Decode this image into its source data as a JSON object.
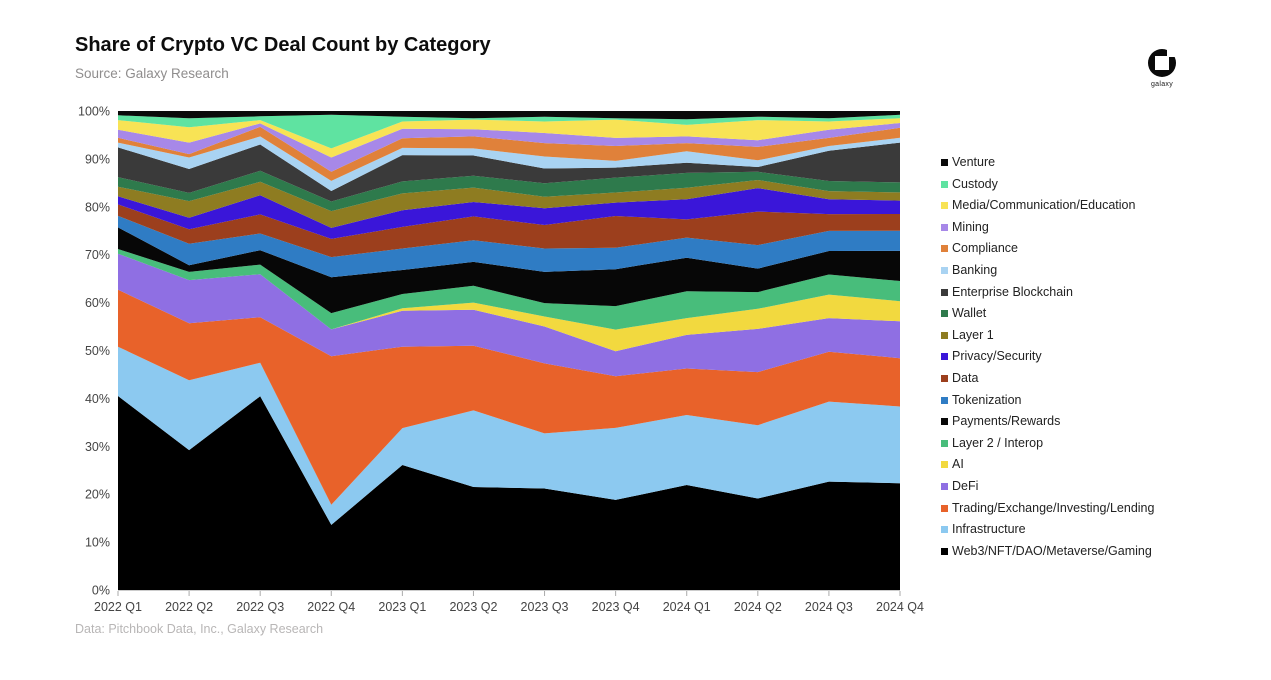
{
  "header": {
    "title": "Share of Crypto VC Deal Count by Category",
    "subtitle": "Source: Galaxy Research"
  },
  "logo": {
    "label": "galaxy"
  },
  "footer": {
    "text": "Data: Pitchbook Data, Inc., Galaxy Research"
  },
  "colors": {
    "background": "#ffffff",
    "title_text": "#0d0d0d",
    "subtitle_text": "#8f8d8d",
    "axis_text": "#444444",
    "footer_text": "#b8b6b6",
    "axis_line": "#cccccc",
    "tick_line": "#aaaaaa"
  },
  "chart_data": {
    "type": "area",
    "stacked": true,
    "normalized_percent": true,
    "title": "Share of Crypto VC Deal Count by Category",
    "xlabel": "",
    "ylabel": "",
    "ylim": [
      0,
      100
    ],
    "y_ticks": [
      0,
      10,
      20,
      30,
      40,
      50,
      60,
      70,
      80,
      90,
      100
    ],
    "y_tick_suffix": "%",
    "grid": false,
    "legend_position": "right",
    "legend_order": "top-of-stack-first",
    "categories": [
      "2022 Q1",
      "2022 Q2",
      "2022 Q3",
      "2022 Q4",
      "2023 Q1",
      "2023 Q2",
      "2023 Q3",
      "2023 Q4",
      "2024 Q1",
      "2024 Q2",
      "2024 Q3",
      "2024 Q4"
    ],
    "series_bottom_to_top": [
      {
        "name": "Web3/NFT/DAO/Metaverse/Gaming",
        "color": "#000000",
        "values": [
          40.5,
          29.2,
          40.5,
          13.6,
          26.1,
          21.5,
          21.2,
          18.8,
          21.9,
          19.1,
          22.6,
          22.3
        ]
      },
      {
        "name": "Infrastructure",
        "color": "#8cc9f0",
        "values": [
          10.3,
          14.6,
          7.0,
          4.2,
          7.7,
          16.0,
          11.5,
          15.0,
          14.6,
          15.3,
          16.7,
          16.0
        ]
      },
      {
        "name": "Trading/Exchange/Investing/Lending",
        "color": "#e8622a",
        "values": [
          11.9,
          11.9,
          9.5,
          31.0,
          17.0,
          13.5,
          14.6,
          10.8,
          9.7,
          11.1,
          10.4,
          10.1
        ]
      },
      {
        "name": "DeFi",
        "color": "#8f6fe3",
        "values": [
          7.5,
          9.0,
          9.0,
          5.6,
          7.5,
          7.5,
          7.7,
          5.2,
          7.0,
          9.0,
          7.0,
          7.7
        ]
      },
      {
        "name": "AI",
        "color": "#f2d93f",
        "values": [
          0,
          0,
          0,
          0,
          0.5,
          1.5,
          2.1,
          4.5,
          3.5,
          4.2,
          4.9,
          4.2
        ]
      },
      {
        "name": "Layer 2 / Interop",
        "color": "#48bd7b",
        "values": [
          1.0,
          1.7,
          2.0,
          3.4,
          3.0,
          3.5,
          2.8,
          4.9,
          5.6,
          3.5,
          4.2,
          4.2
        ]
      },
      {
        "name": "Payments/Rewards",
        "color": "#070707",
        "values": [
          4.5,
          1.4,
          3.0,
          7.5,
          5.0,
          5.0,
          6.5,
          7.7,
          7.0,
          4.9,
          4.9,
          6.3
        ]
      },
      {
        "name": "Tokenization",
        "color": "#2f7cc4",
        "values": [
          2.4,
          4.5,
          3.5,
          4.2,
          4.5,
          4.5,
          4.9,
          4.5,
          4.2,
          4.9,
          4.2,
          4.2
        ]
      },
      {
        "name": "Data",
        "color": "#9c3f1d",
        "values": [
          2.4,
          3.0,
          4.0,
          3.8,
          4.5,
          5.0,
          4.9,
          6.6,
          3.8,
          7.0,
          3.5,
          3.5
        ]
      },
      {
        "name": "Privacy/Security",
        "color": "#3a16d9",
        "values": [
          1.7,
          2.4,
          4.0,
          2.3,
          3.5,
          3.0,
          3.5,
          2.8,
          4.2,
          4.9,
          3.1,
          2.8
        ]
      },
      {
        "name": "Layer 1",
        "color": "#8e7c21",
        "values": [
          2.0,
          3.5,
          2.8,
          3.5,
          3.5,
          3.0,
          2.4,
          2.1,
          2.4,
          1.7,
          1.7,
          1.7
        ]
      },
      {
        "name": "Wallet",
        "color": "#2e7a4c",
        "values": [
          2.0,
          1.7,
          2.3,
          2.0,
          2.5,
          2.5,
          2.8,
          3.1,
          3.1,
          1.7,
          2.1,
          2.1
        ]
      },
      {
        "name": "Enterprise Blockchain",
        "color": "#3a3a3a",
        "values": [
          6.2,
          5.0,
          5.5,
          2.2,
          5.5,
          4.2,
          3.1,
          2.1,
          2.1,
          1.0,
          6.3,
          8.3
        ]
      },
      {
        "name": "Banking",
        "color": "#a9d3f2",
        "values": [
          1.0,
          2.4,
          1.7,
          2.1,
          1.5,
          1.5,
          2.5,
          1.4,
          2.4,
          1.4,
          1.0,
          1.0
        ]
      },
      {
        "name": "Compliance",
        "color": "#e0813a",
        "values": [
          1.0,
          0.7,
          2.0,
          1.9,
          2.0,
          2.5,
          2.8,
          3.1,
          1.7,
          2.8,
          1.7,
          2.1
        ]
      },
      {
        "name": "Mining",
        "color": "#a788e8",
        "values": [
          1.7,
          2.4,
          0.7,
          3.0,
          2.0,
          1.5,
          2.1,
          1.7,
          1.4,
          1.4,
          1.7,
          1.0
        ]
      },
      {
        "name": "Media/Communication/Education",
        "color": "#f8e355",
        "values": [
          2.0,
          3.2,
          0.7,
          1.9,
          1.5,
          2.0,
          2.4,
          3.8,
          2.4,
          4.2,
          1.7,
          1.0
        ]
      },
      {
        "name": "Custody",
        "color": "#5fe3a1",
        "values": [
          1.0,
          1.9,
          0.8,
          7.0,
          1.0,
          0.3,
          1.0,
          0.3,
          1.2,
          0.7,
          0.7,
          0.7
        ]
      },
      {
        "name": "Venture",
        "color": "#0a0a0a",
        "values": [
          0.9,
          1.5,
          1.1,
          0.8,
          1.2,
          1.5,
          1.2,
          1.5,
          1.7,
          1.2,
          1.5,
          0.8
        ]
      }
    ]
  }
}
